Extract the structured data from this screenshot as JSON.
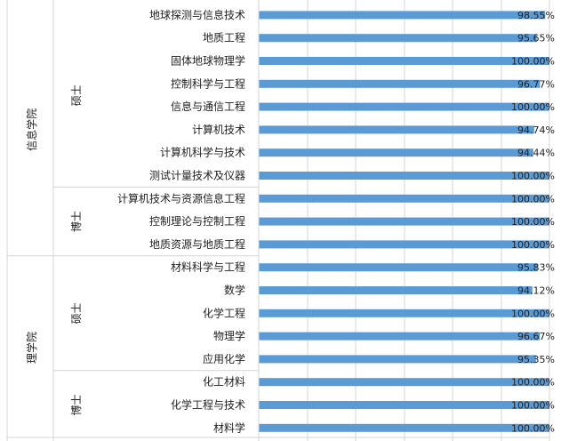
{
  "chart_data": {
    "type": "bar",
    "orientation": "horizontal",
    "title": "",
    "xlabel": "",
    "ylabel": "",
    "xlim": [
      0,
      1
    ],
    "value_format": "percent_2dp",
    "grid": true,
    "bar_color": "#5B9BD5",
    "colleges": [
      {
        "name": "信息学院",
        "levels": [
          {
            "name": "硕士",
            "categories": [
              "地球探测与信息技术",
              "地质工程",
              "固体地球物理学",
              "控制科学与工程",
              "信息与通信工程",
              "计算机技术",
              "计算机科学与技术",
              "测试计量技术及仪器"
            ],
            "values": [
              0.9855,
              0.9565,
              1.0,
              0.9677,
              1.0,
              0.9474,
              0.9444,
              1.0
            ],
            "labels": [
              "98.55%",
              "95.65%",
              "100.00%",
              "96.77%",
              "100.00%",
              "94.74%",
              "94.44%",
              "100.00%"
            ]
          },
          {
            "name": "博士",
            "categories": [
              "计算机技术与资源信息工程",
              "控制理论与控制工程",
              "地质资源与地质工程"
            ],
            "values": [
              1.0,
              1.0,
              1.0
            ],
            "labels": [
              "100.00%",
              "100.00%",
              "100.00%"
            ]
          }
        ]
      },
      {
        "name": "理学院",
        "levels": [
          {
            "name": "硕士",
            "categories": [
              "材料科学与工程",
              "数学",
              "化学工程",
              "物理学",
              "应用化学"
            ],
            "values": [
              0.9583,
              0.9412,
              1.0,
              0.9667,
              0.9535
            ],
            "labels": [
              "95.83%",
              "94.12%",
              "100.00%",
              "96.67%",
              "95.35%"
            ]
          },
          {
            "name": "博士",
            "categories": [
              "化工材料",
              "化学工程与技术",
              "材料学"
            ],
            "values": [
              1.0,
              1.0,
              1.0
            ],
            "labels": [
              "100.00%",
              "100.00%",
              "100.00%"
            ]
          }
        ]
      }
    ]
  }
}
